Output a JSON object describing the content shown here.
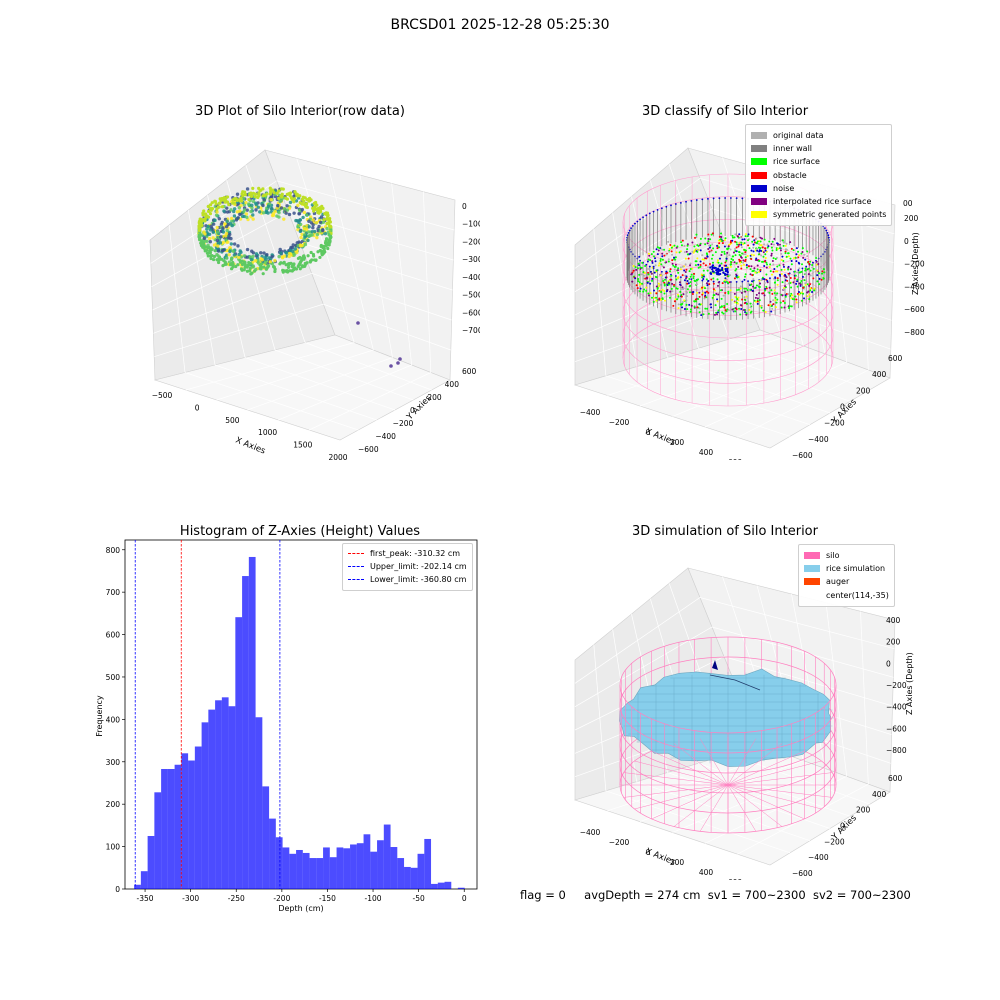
{
  "figure": {
    "suptitle": "BRCSD01 2025-12-28 05:25:30",
    "footer": {
      "flag": "flag = 0",
      "avg_depth": "avgDepth = 274 cm",
      "sv1": "sv1 = 700~2300",
      "sv2": "sv2 = 700~2300"
    }
  },
  "chart_data": [
    {
      "type": "scatter",
      "subtype": "3d",
      "title": "3D Plot of Silo Interior(row data)",
      "xlabel": "X Axies",
      "ylabel": "Y Axies",
      "zlabel": "Z Axies (Depth)",
      "x_ticks": [
        "−500",
        "0",
        "500",
        "1000",
        "1500",
        "2000"
      ],
      "y_ticks": [
        "−600",
        "−400",
        "−200",
        "0",
        "200",
        "400",
        "600"
      ],
      "z_ticks": [
        "0",
        "−100",
        "−200",
        "−300",
        "−400",
        "−500",
        "−600",
        "−700"
      ],
      "colormap": [
        "#3b528b",
        "#21918c",
        "#5ec962",
        "#fde725"
      ],
      "outlier_points": [
        {
          "x": 1800,
          "y": -200,
          "z": -650
        },
        {
          "x": 1900,
          "y": -550,
          "z": -700
        },
        {
          "x": 1950,
          "y": -600,
          "z": -690
        },
        {
          "x": 2000,
          "y": -620,
          "z": -680
        }
      ]
    },
    {
      "type": "scatter",
      "subtype": "3d",
      "title": "3D classify of Silo Interior",
      "xlabel": "X Axies",
      "ylabel": "Y Axies",
      "zlabel": "Z Axies (Depth)",
      "x_ticks": [
        "−400",
        "−200",
        "0",
        "200",
        "400",
        "600"
      ],
      "y_ticks": [
        "−600",
        "−400",
        "−200",
        "0",
        "200",
        "400",
        "600"
      ],
      "z_ticks": [
        "200",
        "0",
        "−200",
        "−400",
        "−600",
        "−800"
      ],
      "z_top_tick": "00",
      "legend": [
        {
          "label": "original data",
          "color": "#b0b0b0"
        },
        {
          "label": "inner wall",
          "color": "#808080"
        },
        {
          "label": "rice surface",
          "color": "#00ff00"
        },
        {
          "label": "obstacle",
          "color": "#ff0000"
        },
        {
          "label": "noise",
          "color": "#0000cc"
        },
        {
          "label": "interpolated rice surface",
          "color": "#800080"
        },
        {
          "label": "symmetric generated points",
          "color": "#ffff00"
        }
      ]
    },
    {
      "type": "bar",
      "subtype": "histogram",
      "title": "Histogram of Z-Axies (Height) Values",
      "xlabel": "Depth (cm)",
      "ylabel": "Frequency",
      "xlim": [
        -372,
        14
      ],
      "ylim": [
        0,
        823
      ],
      "x_ticks": [
        -350,
        -300,
        -250,
        -200,
        -150,
        -100,
        -50,
        0
      ],
      "y_ticks": [
        0,
        100,
        200,
        300,
        400,
        500,
        600,
        700,
        800
      ],
      "bar_color": "#0000ff",
      "bins": [
        {
          "x0": -362.0,
          "x1": -354.6,
          "count": 10
        },
        {
          "x0": -354.6,
          "x1": -347.2,
          "count": 42
        },
        {
          "x0": -347.2,
          "x1": -339.8,
          "count": 125
        },
        {
          "x0": -339.8,
          "x1": -332.4,
          "count": 228
        },
        {
          "x0": -332.4,
          "x1": -325.0,
          "count": 283
        },
        {
          "x0": -325.0,
          "x1": -317.6,
          "count": 283
        },
        {
          "x0": -317.6,
          "x1": -310.2,
          "count": 293
        },
        {
          "x0": -310.2,
          "x1": -302.8,
          "count": 320
        },
        {
          "x0": -302.8,
          "x1": -295.4,
          "count": 303
        },
        {
          "x0": -295.4,
          "x1": -288.0,
          "count": 336
        },
        {
          "x0": -288.0,
          "x1": -280.6,
          "count": 393
        },
        {
          "x0": -280.6,
          "x1": -273.2,
          "count": 423
        },
        {
          "x0": -273.2,
          "x1": -265.8,
          "count": 445
        },
        {
          "x0": -265.8,
          "x1": -258.4,
          "count": 452
        },
        {
          "x0": -258.4,
          "x1": -251.0,
          "count": 431
        },
        {
          "x0": -251.0,
          "x1": -243.6,
          "count": 641
        },
        {
          "x0": -243.6,
          "x1": -236.2,
          "count": 738
        },
        {
          "x0": -236.2,
          "x1": -228.8,
          "count": 783
        },
        {
          "x0": -228.8,
          "x1": -221.4,
          "count": 405
        },
        {
          "x0": -221.4,
          "x1": -214.0,
          "count": 242
        },
        {
          "x0": -214.0,
          "x1": -206.6,
          "count": 166
        },
        {
          "x0": -206.6,
          "x1": -199.2,
          "count": 122
        },
        {
          "x0": -199.2,
          "x1": -191.8,
          "count": 98
        },
        {
          "x0": -191.8,
          "x1": -184.4,
          "count": 83
        },
        {
          "x0": -184.4,
          "x1": -177.0,
          "count": 92
        },
        {
          "x0": -177.0,
          "x1": -169.6,
          "count": 85
        },
        {
          "x0": -169.6,
          "x1": -162.2,
          "count": 73
        },
        {
          "x0": -162.2,
          "x1": -154.8,
          "count": 73
        },
        {
          "x0": -154.8,
          "x1": -147.4,
          "count": 98
        },
        {
          "x0": -147.4,
          "x1": -140.0,
          "count": 75
        },
        {
          "x0": -140.0,
          "x1": -132.6,
          "count": 98
        },
        {
          "x0": -132.6,
          "x1": -125.2,
          "count": 96
        },
        {
          "x0": -125.2,
          "x1": -117.8,
          "count": 105
        },
        {
          "x0": -117.8,
          "x1": -110.4,
          "count": 108
        },
        {
          "x0": -110.4,
          "x1": -103.0,
          "count": 129
        },
        {
          "x0": -103.0,
          "x1": -95.6,
          "count": 88
        },
        {
          "x0": -95.6,
          "x1": -88.2,
          "count": 115
        },
        {
          "x0": -88.2,
          "x1": -80.8,
          "count": 152
        },
        {
          "x0": -80.8,
          "x1": -73.4,
          "count": 99
        },
        {
          "x0": -73.4,
          "x1": -66.0,
          "count": 73
        },
        {
          "x0": -66.0,
          "x1": -58.6,
          "count": 52
        },
        {
          "x0": -58.6,
          "x1": -51.2,
          "count": 50
        },
        {
          "x0": -51.2,
          "x1": -43.8,
          "count": 83
        },
        {
          "x0": -43.8,
          "x1": -36.4,
          "count": 118
        },
        {
          "x0": -36.4,
          "x1": -29.0,
          "count": 12
        },
        {
          "x0": -29.0,
          "x1": -21.6,
          "count": 15
        },
        {
          "x0": -21.6,
          "x1": -14.2,
          "count": 17
        },
        {
          "x0": -7.0,
          "x1": 0.5,
          "count": 3
        }
      ],
      "vlines": [
        {
          "label": "first_peak: -310.32 cm",
          "x": -310.32,
          "color": "#ff0000"
        },
        {
          "label": "Upper_limit: -202.14 cm",
          "x": -202.14,
          "color": "#0000ff"
        },
        {
          "label": "Lower_limit: -360.80 cm",
          "x": -360.8,
          "color": "#0000ff"
        }
      ]
    },
    {
      "type": "surface",
      "subtype": "3d",
      "title": "3D simulation of Silo Interior",
      "xlabel": "X Axies",
      "ylabel": "Y Axies",
      "zlabel": "Z Axies (Depth)",
      "x_ticks": [
        "−400",
        "−200",
        "0",
        "200",
        "400",
        "600"
      ],
      "y_ticks": [
        "−600",
        "−400",
        "−200",
        "0",
        "200",
        "400",
        "600"
      ],
      "z_ticks": [
        "400",
        "200",
        "0",
        "−200",
        "−400",
        "−600",
        "−800"
      ],
      "legend": [
        {
          "label": "silo",
          "color": "#ff69b4"
        },
        {
          "label": "rice simulation",
          "color": "#87ceeb"
        },
        {
          "label": "auger",
          "color": "#ff4500"
        },
        {
          "label": "center(114,-35)",
          "color": ""
        }
      ]
    }
  ]
}
